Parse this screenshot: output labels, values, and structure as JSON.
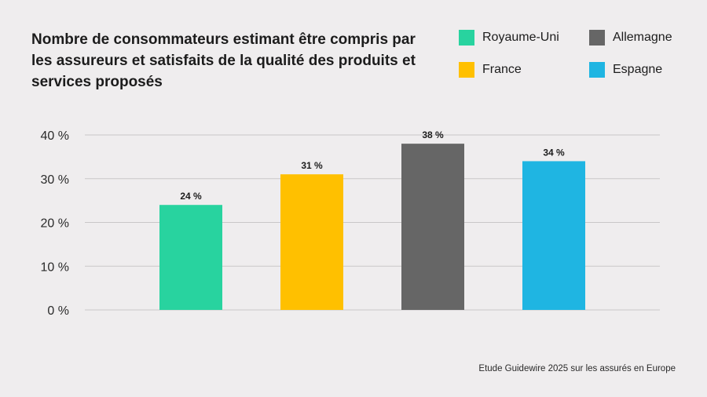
{
  "title": "Nombre de consommateurs estimant être compris par les assureurs et satisfaits de la qualité des produits et services proposés",
  "source": "Etude Guidewire 2025 sur les assurés en Europe",
  "chart_data": {
    "type": "bar",
    "title": "Nombre de consommateurs estimant être compris par les assureurs et satisfaits de la qualité des produits et services proposés",
    "categories": [
      "Royaume-Uni",
      "France",
      "Allemagne",
      "Espagne"
    ],
    "values": [
      24,
      31,
      38,
      34
    ],
    "value_labels": [
      "24 %",
      "31 %",
      "38 %",
      "34 %"
    ],
    "colors": [
      "#28d39f",
      "#ffc000",
      "#666666",
      "#1fb5e2"
    ],
    "yticks": [
      0,
      10,
      20,
      30,
      40
    ],
    "ytick_labels": [
      "0 %",
      "10 %",
      "20 %",
      "30 %",
      "40 %"
    ],
    "ylim": [
      0,
      40
    ],
    "xlabel": "",
    "ylabel": "",
    "grid": true,
    "legend_position": "top-right",
    "legend": [
      "Royaume-Uni",
      "Allemagne",
      "France",
      "Espagne"
    ]
  }
}
